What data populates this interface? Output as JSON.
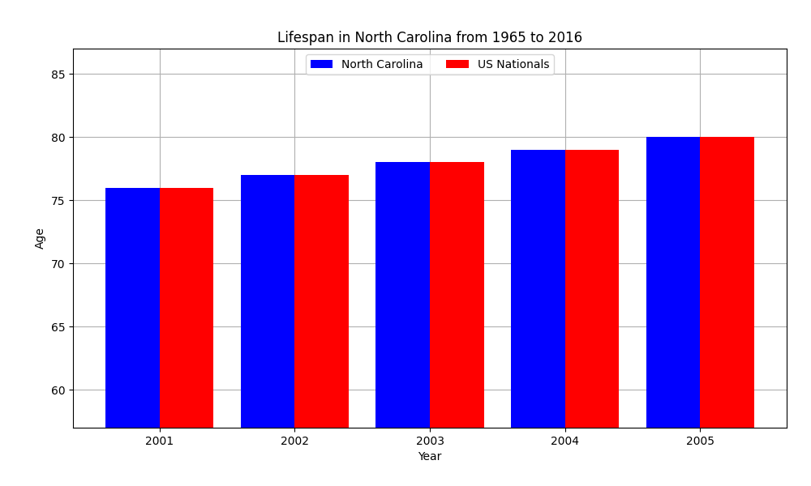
{
  "chart_data": {
    "type": "bar",
    "title": "Lifespan in North Carolina from 1965 to 2016",
    "categories": [
      "2001",
      "2002",
      "2003",
      "2004",
      "2005"
    ],
    "series": [
      {
        "name": "North Carolina",
        "color": "#0000ff",
        "values": [
          76,
          77,
          78,
          79,
          80
        ]
      },
      {
        "name": "US Nationals",
        "color": "#ff0000",
        "values": [
          76,
          77,
          78,
          79,
          80
        ]
      }
    ],
    "x_label": "Year",
    "y_label": "Age",
    "ylim": [
      57,
      87
    ],
    "yticks": [
      60,
      65,
      70,
      75,
      80,
      85
    ],
    "grid": true,
    "legend": "upper center"
  }
}
